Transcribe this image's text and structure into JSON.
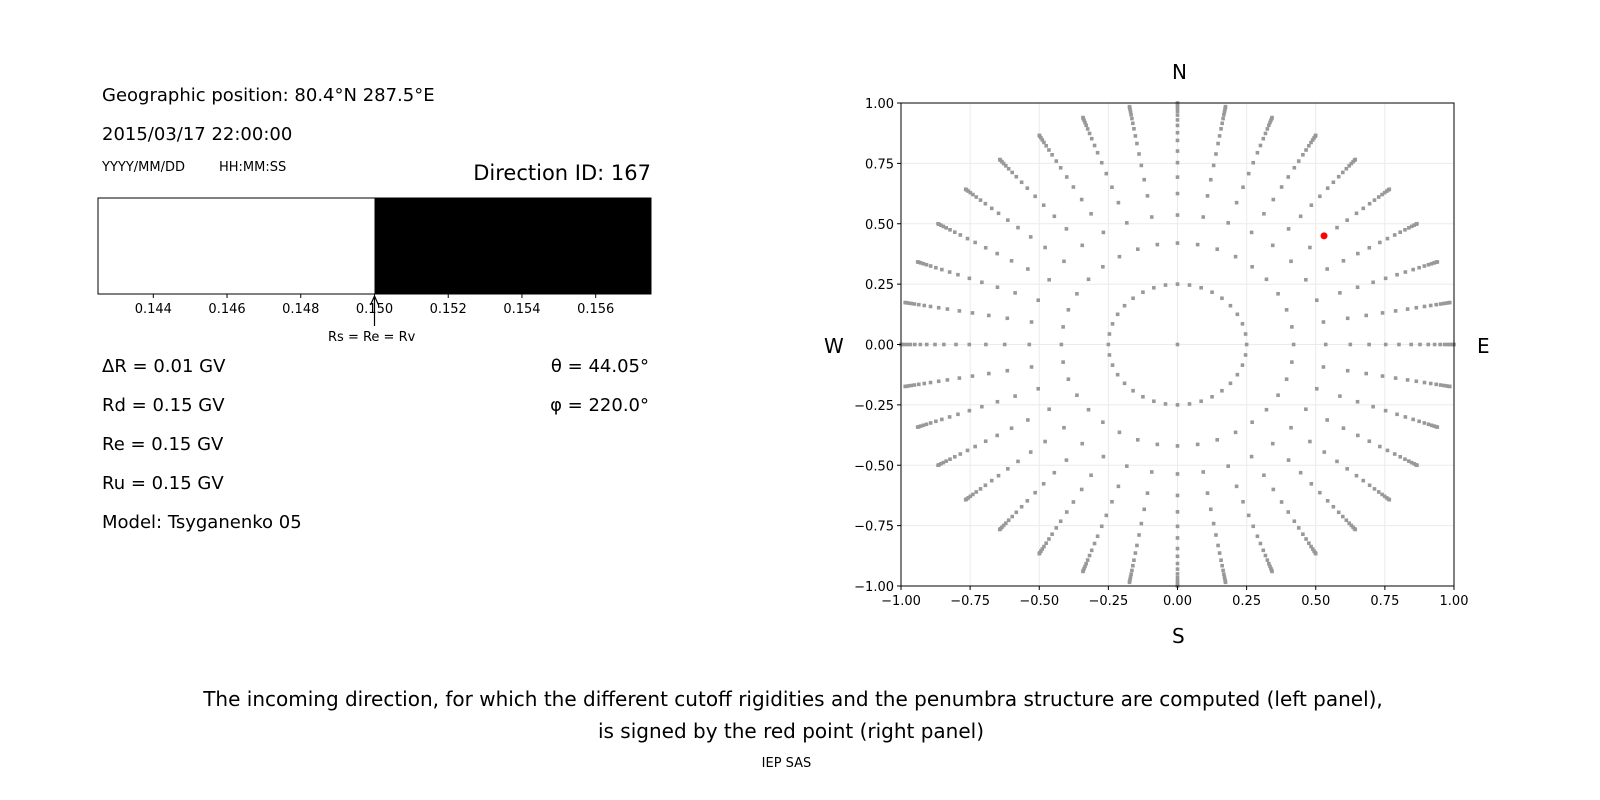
{
  "left_panel": {
    "geo_position": "Geographic position: 80.4°N 287.5°E",
    "datetime": "2015/03/17 22:00:00",
    "date_format": "YYYY/MM/DD",
    "time_format": "HH:MM:SS",
    "direction_id": "Direction ID: 167",
    "delta_r": "ΔR = 0.01 GV",
    "rd": "Rd = 0.15 GV",
    "re": "Re = 0.15 GV",
    "ru": "Ru = 0.15 GV",
    "model": "Model: Tsyganenko 05",
    "theta": "θ = 44.05°",
    "phi": "φ = 220.0°"
  },
  "chart_data": [
    {
      "type": "bar",
      "description_label": "penumbra",
      "xlim": [
        0.1425,
        0.1575
      ],
      "x_ticks": [
        "0.144",
        "0.146",
        "0.148",
        "0.150",
        "0.152",
        "0.154",
        "0.156"
      ],
      "x_tick_values": [
        0.144,
        0.146,
        0.148,
        0.15,
        0.152,
        0.154,
        0.156
      ],
      "segments": [
        {
          "from": 0.1425,
          "to": 0.15,
          "color": "#ffffff"
        },
        {
          "from": 0.15,
          "to": 0.1575,
          "color": "#000000"
        }
      ],
      "annotation": {
        "text": "Rs = Re = Rv",
        "x": 0.15
      }
    },
    {
      "type": "scatter",
      "xlim": [
        -1,
        1
      ],
      "ylim": [
        -1,
        1
      ],
      "grid": true,
      "x_ticks": [
        "−1.00",
        "−0.75",
        "−0.50",
        "−0.25",
        "0.00",
        "0.25",
        "0.50",
        "0.75",
        "1.00"
      ],
      "y_ticks": [
        "−1.00",
        "−0.75",
        "−0.50",
        "−0.25",
        "0.00",
        "0.25",
        "0.50",
        "0.75",
        "1.00"
      ],
      "tick_values": [
        -1,
        -0.75,
        -0.5,
        -0.25,
        0,
        0.25,
        0.5,
        0.75,
        1
      ],
      "directions": {
        "north": "N",
        "south": "S",
        "west": "W",
        "east": "E"
      },
      "point_grid": {
        "center": [
          0,
          0
        ],
        "azimuth_step_deg": 10,
        "radii": [
          0.25,
          0.42,
          0.536,
          0.625,
          0.693,
          0.753,
          0.801,
          0.845,
          0.877,
          0.907,
          0.93,
          0.95,
          0.966,
          0.978,
          0.988,
          0.996,
          1.0
        ]
      },
      "point_color": "#999999",
      "selected_point": {
        "x": 0.53,
        "y": 0.45,
        "color": "#ff0000"
      }
    }
  ],
  "caption": {
    "line1": "The incoming direction, for which the different cutoff rigidities and the penumbra structure are computed (left panel),",
    "line2": "is signed by the red point (right panel)",
    "credit": "IEP SAS"
  }
}
